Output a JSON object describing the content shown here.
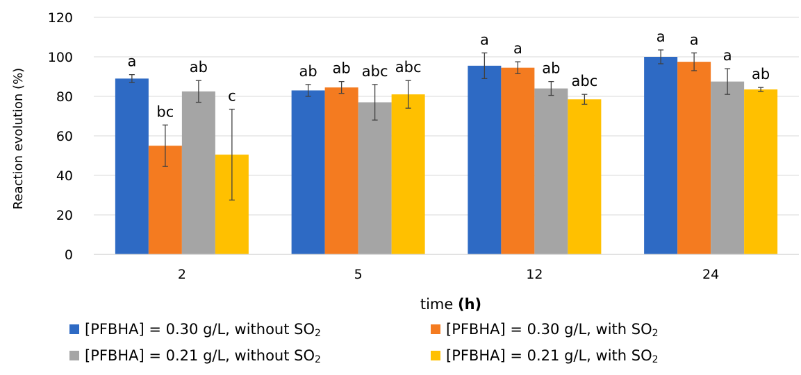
{
  "chart_data": {
    "type": "bar",
    "title": "",
    "xlabel": "time",
    "xlabel_unit": "(h)",
    "ylabel": "Reaction evolution (%)",
    "ylim": [
      0,
      120
    ],
    "yticks": [
      0,
      20,
      40,
      60,
      80,
      100,
      120
    ],
    "grid": true,
    "legend_position": "bottom",
    "categories": [
      "2",
      "5",
      "12",
      "24"
    ],
    "series": [
      {
        "name": "[PFBHA] = 0.30 g/L, without SO",
        "name_subscript": "2",
        "color": "#2e6ac4",
        "values": [
          89,
          83,
          95.5,
          100
        ],
        "errors": [
          2,
          3,
          6.5,
          3.5
        ],
        "significance": [
          "a",
          "ab",
          "a",
          "a"
        ]
      },
      {
        "name": "[PFBHA] = 0.30 g/L, with SO",
        "name_subscript": "2",
        "color": "#f47b20",
        "values": [
          55,
          84.5,
          94.5,
          97.5
        ],
        "errors": [
          10.5,
          3,
          3,
          4.5
        ],
        "significance": [
          "bc",
          "ab",
          "a",
          "a"
        ]
      },
      {
        "name": "[PFBHA] = 0.21 g/L, without SO",
        "name_subscript": "2",
        "color": "#a5a5a5",
        "values": [
          82.5,
          77,
          84,
          87.5
        ],
        "errors": [
          5.5,
          9,
          3.5,
          6.5
        ],
        "significance": [
          "ab",
          "abc",
          "ab",
          "a"
        ]
      },
      {
        "name": "[PFBHA] = 0.21 g/L, with SO",
        "name_subscript": "2",
        "color": "#ffc000",
        "values": [
          50.5,
          81,
          78.5,
          83.5
        ],
        "errors": [
          23,
          7,
          2.5,
          1
        ],
        "significance": [
          "c",
          "abc",
          "abc",
          "ab"
        ]
      }
    ]
  }
}
